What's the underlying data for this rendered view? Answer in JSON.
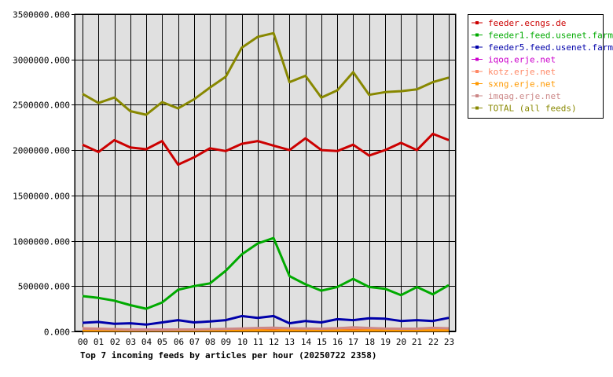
{
  "chart_data": {
    "type": "line",
    "title": "Top 7 incoming feeds by articles per hour (20250722 2358)",
    "x": [
      "00",
      "01",
      "02",
      "03",
      "04",
      "05",
      "06",
      "07",
      "08",
      "09",
      "10",
      "11",
      "12",
      "13",
      "14",
      "15",
      "16",
      "17",
      "18",
      "19",
      "20",
      "21",
      "22",
      "23"
    ],
    "ylim": [
      0,
      3500000
    ],
    "yticks": [
      0,
      500000,
      1000000,
      1500000,
      2000000,
      2500000,
      3000000,
      3500000
    ],
    "ytick_labels": [
      "0.000",
      "500000.000",
      "1000000.000",
      "1500000.000",
      "2000000.000",
      "2500000.000",
      "3000000.000",
      "3500000.000"
    ],
    "grid": true,
    "legend_position": "right",
    "series": [
      {
        "name": "feeder.ecngs.de",
        "color": "#cc0000",
        "values": [
          2060000,
          1980000,
          2110000,
          2030000,
          2010000,
          2100000,
          1840000,
          1920000,
          2020000,
          1990000,
          2070000,
          2100000,
          2050000,
          2000000,
          2130000,
          2000000,
          1990000,
          2060000,
          1940000,
          2000000,
          2080000,
          2000000,
          2180000,
          2110000
        ]
      },
      {
        "name": "feeder1.feed.usenet.farm",
        "color": "#00aa00",
        "values": [
          390000,
          370000,
          340000,
          290000,
          250000,
          320000,
          460000,
          500000,
          530000,
          670000,
          850000,
          970000,
          1030000,
          610000,
          520000,
          450000,
          490000,
          580000,
          490000,
          470000,
          400000,
          490000,
          410000,
          510000
        ]
      },
      {
        "name": "feeder5.feed.usenet.farm",
        "color": "#0000aa",
        "values": [
          95000,
          105000,
          85000,
          90000,
          75000,
          100000,
          125000,
          100000,
          110000,
          125000,
          170000,
          150000,
          170000,
          90000,
          115000,
          100000,
          135000,
          125000,
          145000,
          140000,
          115000,
          125000,
          115000,
          150000
        ]
      },
      {
        "name": "iqoq.erje.net",
        "color": "#cc00cc",
        "values": [
          20000,
          20000,
          20000,
          20000,
          20000,
          20000,
          20000,
          20000,
          20000,
          20000,
          25000,
          30000,
          30000,
          25000,
          20000,
          20000,
          20000,
          25000,
          25000,
          20000,
          20000,
          20000,
          20000,
          20000
        ]
      },
      {
        "name": "kotz.erje.net",
        "color": "#ff8866",
        "values": [
          35000,
          30000,
          25000,
          20000,
          15000,
          15000,
          20000,
          20000,
          20000,
          25000,
          30000,
          35000,
          40000,
          30000,
          30000,
          30000,
          35000,
          40000,
          35000,
          30000,
          30000,
          30000,
          35000,
          30000
        ]
      },
      {
        "name": "sxng.erje.net",
        "color": "#ff9900",
        "values": [
          10000,
          10000,
          10000,
          10000,
          10000,
          10000,
          10000,
          10000,
          10000,
          10000,
          10000,
          10000,
          10000,
          10000,
          10000,
          10000,
          10000,
          10000,
          10000,
          10000,
          10000,
          10000,
          10000,
          10000
        ]
      },
      {
        "name": "imqag.erje.net",
        "color": "#cc8888",
        "values": [
          30000,
          28000,
          25000,
          20000,
          18000,
          18000,
          22000,
          22000,
          25000,
          28000,
          32000,
          38000,
          42000,
          35000,
          32000,
          30000,
          35000,
          45000,
          38000,
          32000,
          30000,
          30000,
          40000,
          35000
        ]
      },
      {
        "name": "TOTAL (all feeds)",
        "color": "#888800",
        "values": [
          2620000,
          2520000,
          2580000,
          2430000,
          2390000,
          2530000,
          2460000,
          2560000,
          2690000,
          2810000,
          3130000,
          3250000,
          3290000,
          2750000,
          2820000,
          2580000,
          2660000,
          2860000,
          2610000,
          2640000,
          2650000,
          2670000,
          2750000,
          2800000
        ]
      }
    ]
  }
}
